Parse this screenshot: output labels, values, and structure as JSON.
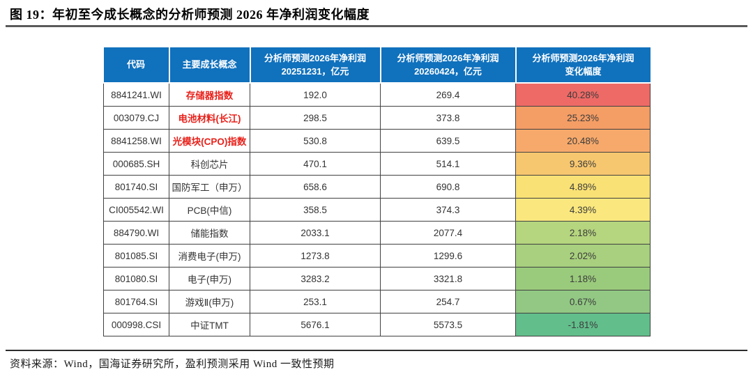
{
  "title": "图 19：年初至今成长概念的分析师预测 2026 年净利润变化幅度",
  "footer": {
    "source": "资料来源：Wind，国海证券研究所，盈利预测采用 Wind 一致性预期"
  },
  "colors": {
    "header_bg": "#1071BD",
    "header_text": "#FFFFFF",
    "highlight_text": "#E8211A",
    "grid_line": "#404040",
    "heat_scale_top": "#EE6A66",
    "heat_scale_bottom": "#62BE8B"
  },
  "table": {
    "headers": [
      {
        "line1": "代码",
        "line2": ""
      },
      {
        "line1": "主要成长概念",
        "line2": ""
      },
      {
        "line1": "分析师预测2026年净利润",
        "line2": "20251231，亿元"
      },
      {
        "line1": "分析师预测2026年净利润",
        "line2": "20260424，亿元"
      },
      {
        "line1": "分析师预测2026年净利润",
        "line2": "变化幅度"
      }
    ],
    "rows": [
      {
        "code": "8841241.WI",
        "concept": "存储器指数",
        "highlight": true,
        "np_20251231": "192.0",
        "np_20260424": "269.4",
        "change": "40.28%",
        "change_bg": "#EE6A66"
      },
      {
        "code": "003079.CJ",
        "concept": "电池材料(长江)",
        "highlight": true,
        "np_20251231": "298.5",
        "np_20260424": "373.8",
        "change": "25.23%",
        "change_bg": "#F49D65"
      },
      {
        "code": "8841258.WI",
        "concept": "光模块(CPO)指数",
        "highlight": true,
        "np_20251231": "530.8",
        "np_20260424": "639.5",
        "change": "20.48%",
        "change_bg": "#F7A96B"
      },
      {
        "code": "000685.SH",
        "concept": "科创芯片",
        "highlight": false,
        "np_20251231": "470.1",
        "np_20260424": "514.1",
        "change": "9.36%",
        "change_bg": "#F7C76F"
      },
      {
        "code": "801740.SI",
        "concept": "国防军工（申万）",
        "highlight": false,
        "np_20251231": "658.6",
        "np_20260424": "690.8",
        "change": "4.89%",
        "change_bg": "#F9E175"
      },
      {
        "code": "CI005542.WI",
        "concept": "PCB(中信)",
        "highlight": false,
        "np_20251231": "358.5",
        "np_20260424": "374.3",
        "change": "4.39%",
        "change_bg": "#FAE87E"
      },
      {
        "code": "884790.WI",
        "concept": "储能指数",
        "highlight": false,
        "np_20251231": "2033.1",
        "np_20260424": "2077.4",
        "change": "2.18%",
        "change_bg": "#B5D57E"
      },
      {
        "code": "801085.SI",
        "concept": "消费电子(申万)",
        "highlight": false,
        "np_20251231": "1273.8",
        "np_20260424": "1299.6",
        "change": "2.02%",
        "change_bg": "#A8D07E"
      },
      {
        "code": "801080.SI",
        "concept": "电子(申万)",
        "highlight": false,
        "np_20251231": "3283.2",
        "np_20260424": "3321.8",
        "change": "1.18%",
        "change_bg": "#9ACB7C"
      },
      {
        "code": "801764.SI",
        "concept": "游戏Ⅱ(申万)",
        "highlight": false,
        "np_20251231": "253.1",
        "np_20260424": "254.7",
        "change": "0.67%",
        "change_bg": "#92C884"
      },
      {
        "code": "000998.CSI",
        "concept": "中证TMT",
        "highlight": false,
        "np_20251231": "5676.1",
        "np_20260424": "5573.5",
        "change": "-1.81%",
        "change_bg": "#62BE8B"
      }
    ]
  }
}
